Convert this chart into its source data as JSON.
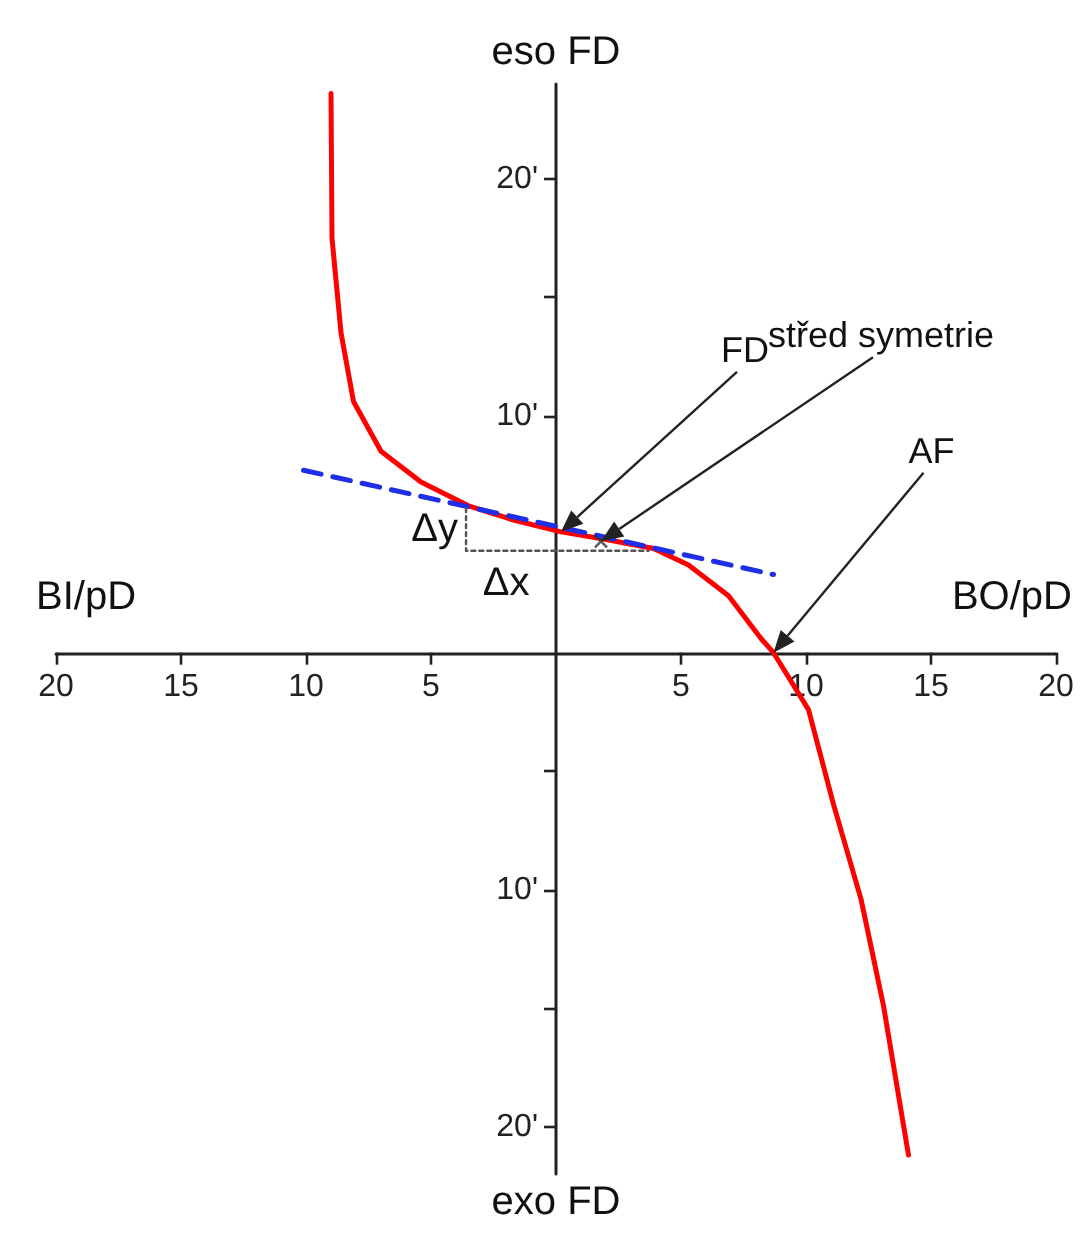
{
  "chart_data": {
    "type": "line",
    "xlabel": "BO/pD",
    "ylabel": "eso FD",
    "annotations": [
      "BI/pD",
      "exo FD",
      "Δy",
      "Δx",
      "FD",
      "střed symetrie",
      "AF"
    ],
    "xlim": [
      -20,
      20
    ],
    "xticks": [
      {
        "value": -20,
        "label": "20"
      },
      {
        "value": -15,
        "label": "15"
      },
      {
        "value": -10,
        "label": "10"
      },
      {
        "value": -5,
        "label": "5"
      },
      5,
      10,
      15,
      20
    ],
    "ylim": [
      -22,
      24
    ],
    "yticks": [
      {
        "value": 20,
        "label": "20'"
      },
      {
        "value": 15,
        "label": null
      },
      {
        "value": 10,
        "label": "10'"
      },
      {
        "value": -5,
        "label": null
      },
      {
        "value": -10,
        "label": "10'"
      },
      {
        "value": -15,
        "label": null
      },
      {
        "value": -20,
        "label": "20'"
      }
    ],
    "grid": false,
    "series": [
      {
        "color": "#ff0000",
        "line_style": "solid",
        "marker": "none",
        "x": [
          -9.0,
          -8.96,
          -8.6,
          -8.1,
          -7.0,
          -5.4,
          -3.5,
          -1.7,
          0.2,
          1.9,
          3.9,
          5.3,
          6.9,
          8.2,
          8.7,
          10.1,
          11.1,
          12.2,
          13.1,
          14.1
        ],
        "values": [
          23.6,
          17.5,
          13.5,
          10.6,
          8.5,
          7.2,
          6.2,
          5.6,
          5.1,
          4.8,
          4.4,
          3.7,
          2.4,
          0.6,
          0,
          -2.4,
          -6.4,
          -10.4,
          -14.9,
          -21.2
        ]
      },
      {
        "color": "#1f2fe8",
        "line_style": "dashed",
        "marker": "none",
        "x": [
          -10.1,
          8.7
        ],
        "values": [
          7.7,
          3.3
        ]
      },
      {
        "color": "#555555",
        "line_style": "dotted",
        "marker": "none",
        "x": [
          -3.6,
          -3.6,
          3.7
        ],
        "values": [
          6.1,
          4.3,
          4.3
        ]
      },
      {
        "type": "scatter",
        "color": "#333333",
        "marker": "cross",
        "x": [
          1.8
        ],
        "values": [
          4.7
        ]
      }
    ]
  }
}
